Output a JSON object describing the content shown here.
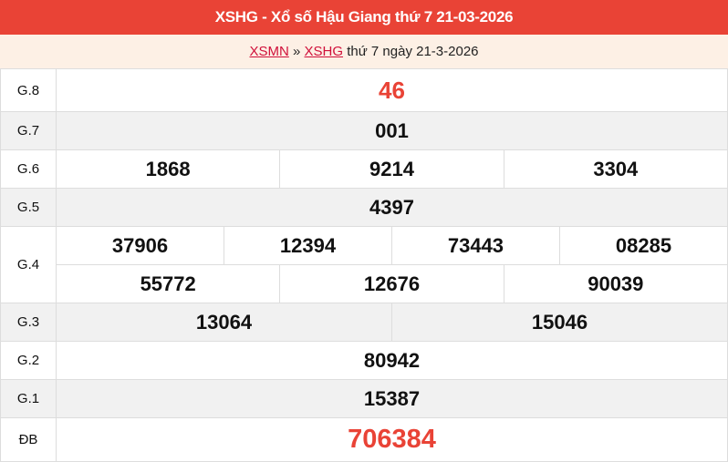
{
  "header": {
    "title": "XSHG - Xổ số Hậu Giang thứ 7 21-03-2026"
  },
  "breadcrumb": {
    "link1": "XSMN",
    "sep": " » ",
    "link2": "XSHG",
    "rest": " thứ 7 ngày 21-3-2026"
  },
  "prizes": {
    "g8": {
      "label": "G.8",
      "values": [
        "46"
      ]
    },
    "g7": {
      "label": "G.7",
      "values": [
        "001"
      ]
    },
    "g6": {
      "label": "G.6",
      "values": [
        "1868",
        "9214",
        "3304"
      ]
    },
    "g5": {
      "label": "G.5",
      "values": [
        "4397"
      ]
    },
    "g4": {
      "label": "G.4",
      "values": [
        "37906",
        "12394",
        "73443",
        "08285",
        "55772",
        "12676",
        "90039"
      ]
    },
    "g3": {
      "label": "G.3",
      "values": [
        "13064",
        "15046"
      ]
    },
    "g2": {
      "label": "G.2",
      "values": [
        "80942"
      ]
    },
    "g1": {
      "label": "G.1",
      "values": [
        "15387"
      ]
    },
    "db": {
      "label": "ĐB",
      "values": [
        "706384"
      ]
    }
  },
  "colors": {
    "accent": "#e94336"
  }
}
